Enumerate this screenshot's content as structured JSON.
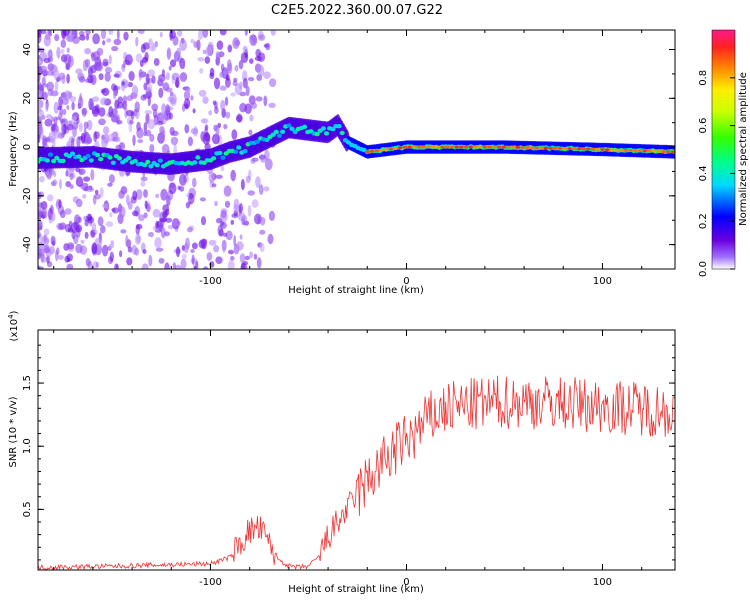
{
  "title": "C2E5.2022.360.00.07.G22",
  "chart_data": [
    {
      "type": "heatmap",
      "xlabel": "Height of straight line (km)",
      "ylabel": "Frequency (Hz)",
      "xlim": [
        -188,
        137
      ],
      "ylim": [
        -50,
        48
      ],
      "x_ticks": [
        -100,
        0,
        100
      ],
      "y_ticks": [
        -40,
        -20,
        0,
        20,
        40
      ],
      "colorbar": {
        "label": "Normalized spectral amplitude",
        "range": [
          0,
          1
        ],
        "ticks": [
          0.0,
          0.2,
          0.4,
          0.6,
          0.8
        ]
      },
      "ridge": [
        {
          "x": -188,
          "y": -4.5
        },
        {
          "x": -160,
          "y": -4
        },
        {
          "x": -140,
          "y": -6
        },
        {
          "x": -120,
          "y": -7
        },
        {
          "x": -100,
          "y": -5
        },
        {
          "x": -90,
          "y": -2
        },
        {
          "x": -80,
          "y": 0
        },
        {
          "x": -70,
          "y": 4
        },
        {
          "x": -60,
          "y": 8
        },
        {
          "x": -50,
          "y": 7
        },
        {
          "x": -40,
          "y": 6
        },
        {
          "x": -35,
          "y": 9
        },
        {
          "x": -30,
          "y": 2
        },
        {
          "x": -20,
          "y": -2
        },
        {
          "x": 0,
          "y": 0
        },
        {
          "x": 50,
          "y": 0
        },
        {
          "x": 100,
          "y": -1
        },
        {
          "x": 137,
          "y": -2
        }
      ]
    },
    {
      "type": "line",
      "xlabel": "Height of straight line (km)",
      "ylabel": "SNR (10 * v/v)",
      "y_multiplier": "(x10^4)",
      "y_multiplier_base": "(x10",
      "y_multiplier_exp": "4",
      "y_multiplier_close": ")",
      "xlim": [
        -188,
        137
      ],
      "ylim": [
        0.02,
        1.92
      ],
      "x_ticks": [
        -100,
        0,
        100
      ],
      "y_ticks": [
        0.5,
        1.0,
        1.5
      ],
      "y_tick_labels": [
        "0.5",
        "1.0",
        "1.5"
      ],
      "color": "#ee3333",
      "series": [
        {
          "x": [
            -188,
            -150,
            -100,
            -90,
            -80,
            -75,
            -70,
            -65,
            -60,
            -55,
            -50,
            -45,
            -40,
            -35,
            -30,
            -25,
            -20,
            -15,
            -10,
            -5,
            0,
            5,
            10,
            20,
            30,
            50,
            70,
            100,
            120,
            137
          ],
          "values": [
            0.04,
            0.05,
            0.07,
            0.12,
            0.33,
            0.35,
            0.22,
            0.1,
            0.05,
            0.04,
            0.05,
            0.12,
            0.28,
            0.4,
            0.5,
            0.62,
            0.72,
            0.82,
            0.9,
            0.98,
            1.05,
            1.1,
            1.2,
            1.3,
            1.32,
            1.35,
            1.35,
            1.32,
            1.3,
            1.28
          ]
        }
      ]
    }
  ]
}
